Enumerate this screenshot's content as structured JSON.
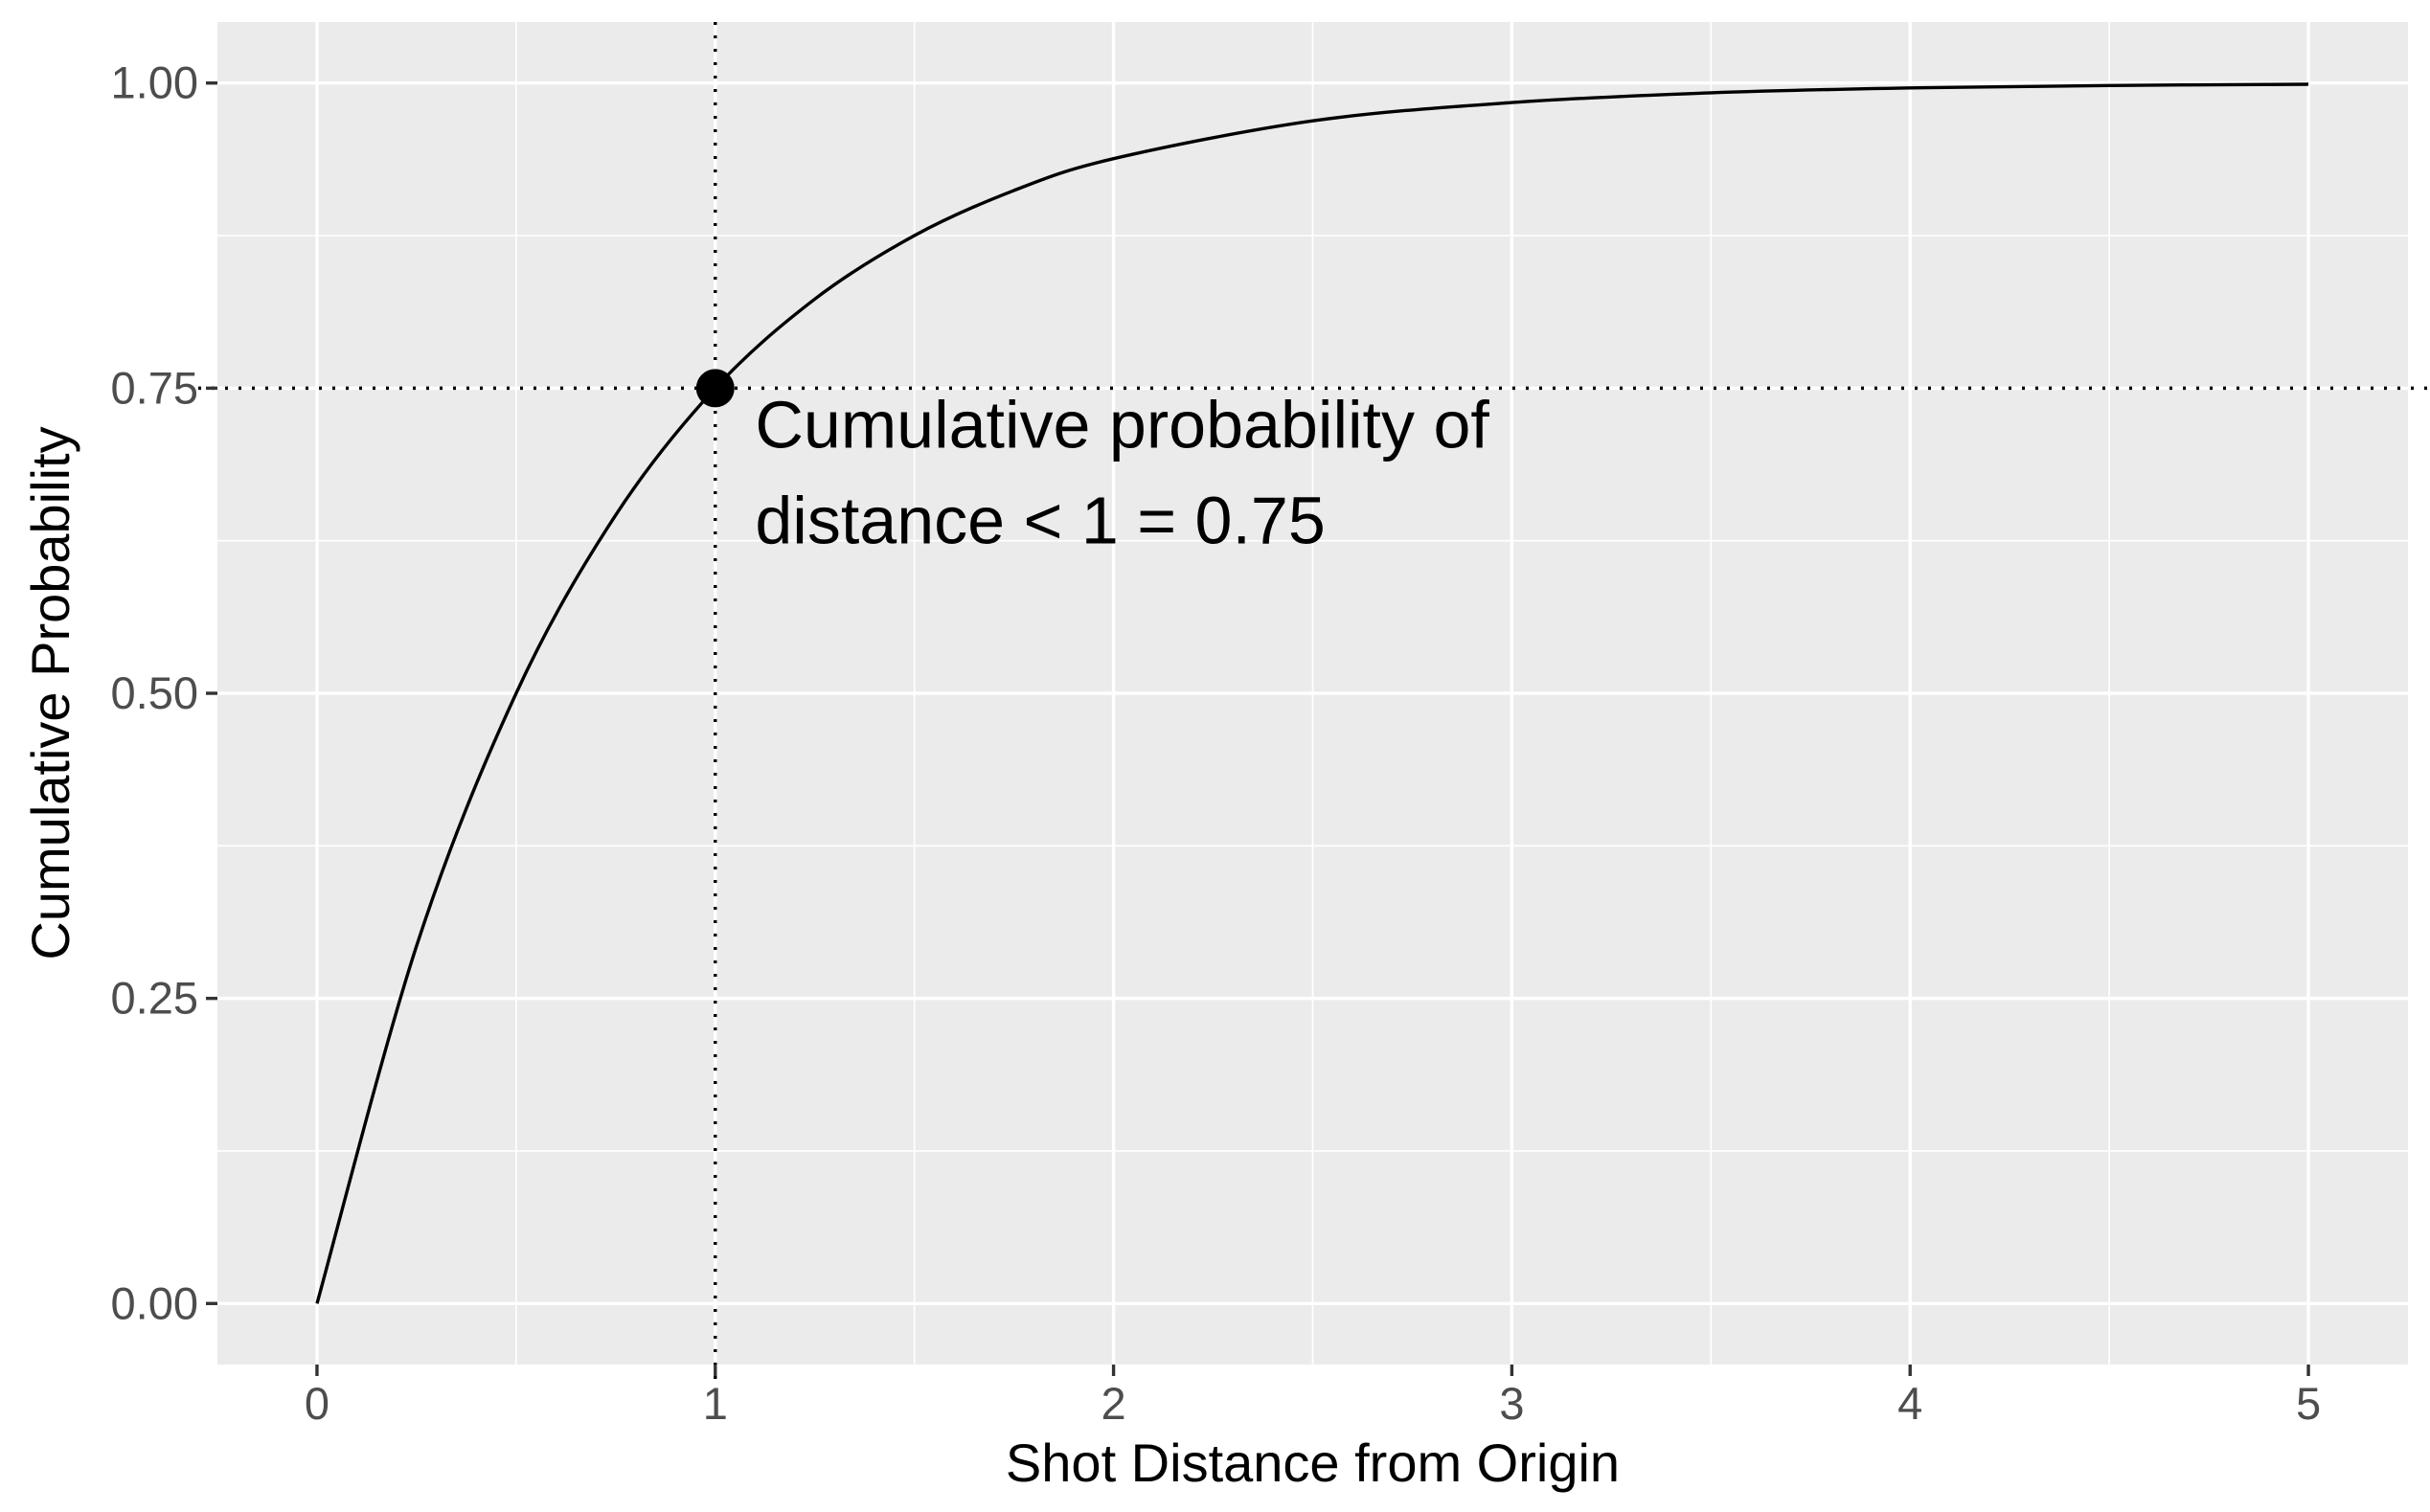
{
  "chart_data": {
    "type": "line",
    "title": "",
    "xlabel": "Shot Distance from Origin",
    "ylabel": "Cumulative Probability",
    "xlim": [
      -0.25,
      5.25
    ],
    "ylim": [
      -0.05,
      1.05
    ],
    "x_ticks": [
      0,
      1,
      2,
      3,
      4,
      5
    ],
    "x_tick_labels": [
      "0",
      "1",
      "2",
      "3",
      "4",
      "5"
    ],
    "y_ticks": [
      0,
      0.25,
      0.5,
      0.75,
      1.0
    ],
    "y_tick_labels": [
      "0.00",
      "0.25",
      "0.50",
      "0.75",
      "1.00"
    ],
    "grid": true,
    "series": [
      {
        "x": [
          0,
          0.25,
          0.5,
          0.75,
          1.0,
          1.25,
          1.5,
          1.75,
          2.0,
          2.5,
          3.0,
          3.5,
          4.0,
          4.5,
          5.0
        ],
        "y": [
          0,
          0.293,
          0.5,
          0.646,
          0.75,
          0.823,
          0.875,
          0.912,
          0.938,
          0.969,
          0.984,
          0.992,
          0.996,
          0.998,
          0.999
        ]
      }
    ],
    "highlight_point": {
      "x": 1,
      "y": 0.75
    },
    "reference_lines": {
      "vertical_x": 1,
      "horizontal_y": 0.75,
      "style": "dotted"
    },
    "annotation": {
      "lines": [
        "Cumulative probability of",
        "distance < 1 = 0.75"
      ],
      "x": 1.1,
      "y": 0.72
    }
  }
}
